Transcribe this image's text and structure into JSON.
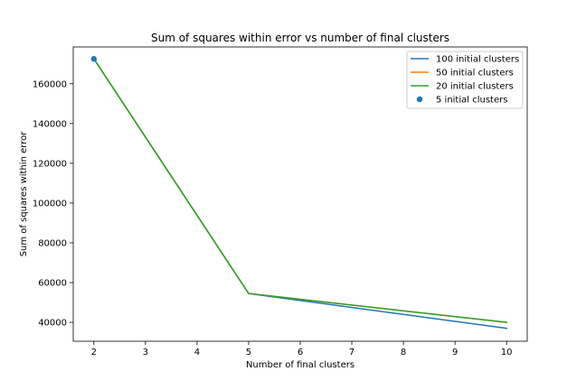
{
  "chart_data": {
    "type": "line",
    "title": "Sum of squares within error vs number of final clusters",
    "xlabel": "Number of final clusters",
    "ylabel": "Sum of squares within error",
    "xlim": [
      1.6,
      10.4
    ],
    "ylim": [
      30500,
      178500
    ],
    "xticks": [
      2,
      3,
      4,
      5,
      6,
      7,
      8,
      9,
      10
    ],
    "yticks": [
      40000,
      60000,
      80000,
      100000,
      120000,
      140000,
      160000
    ],
    "grid": false,
    "legend_position": "top-right",
    "series": [
      {
        "name": "100 initial clusters",
        "kind": "line",
        "color": "#1f77b4",
        "x": [
          2,
          5,
          10
        ],
        "y": [
          172500,
          54500,
          37000
        ]
      },
      {
        "name": "50 initial clusters",
        "kind": "line",
        "color": "#ff7f0e",
        "x": [
          2,
          5,
          10
        ],
        "y": [
          172500,
          54500,
          40000
        ]
      },
      {
        "name": "20 initial clusters",
        "kind": "line",
        "color": "#2ca02c",
        "x": [
          2,
          5,
          10
        ],
        "y": [
          172500,
          54500,
          40000
        ]
      },
      {
        "name": "5 initial clusters",
        "kind": "scatter",
        "color": "#1f77b4",
        "x": [
          2
        ],
        "y": [
          172500
        ]
      }
    ]
  }
}
